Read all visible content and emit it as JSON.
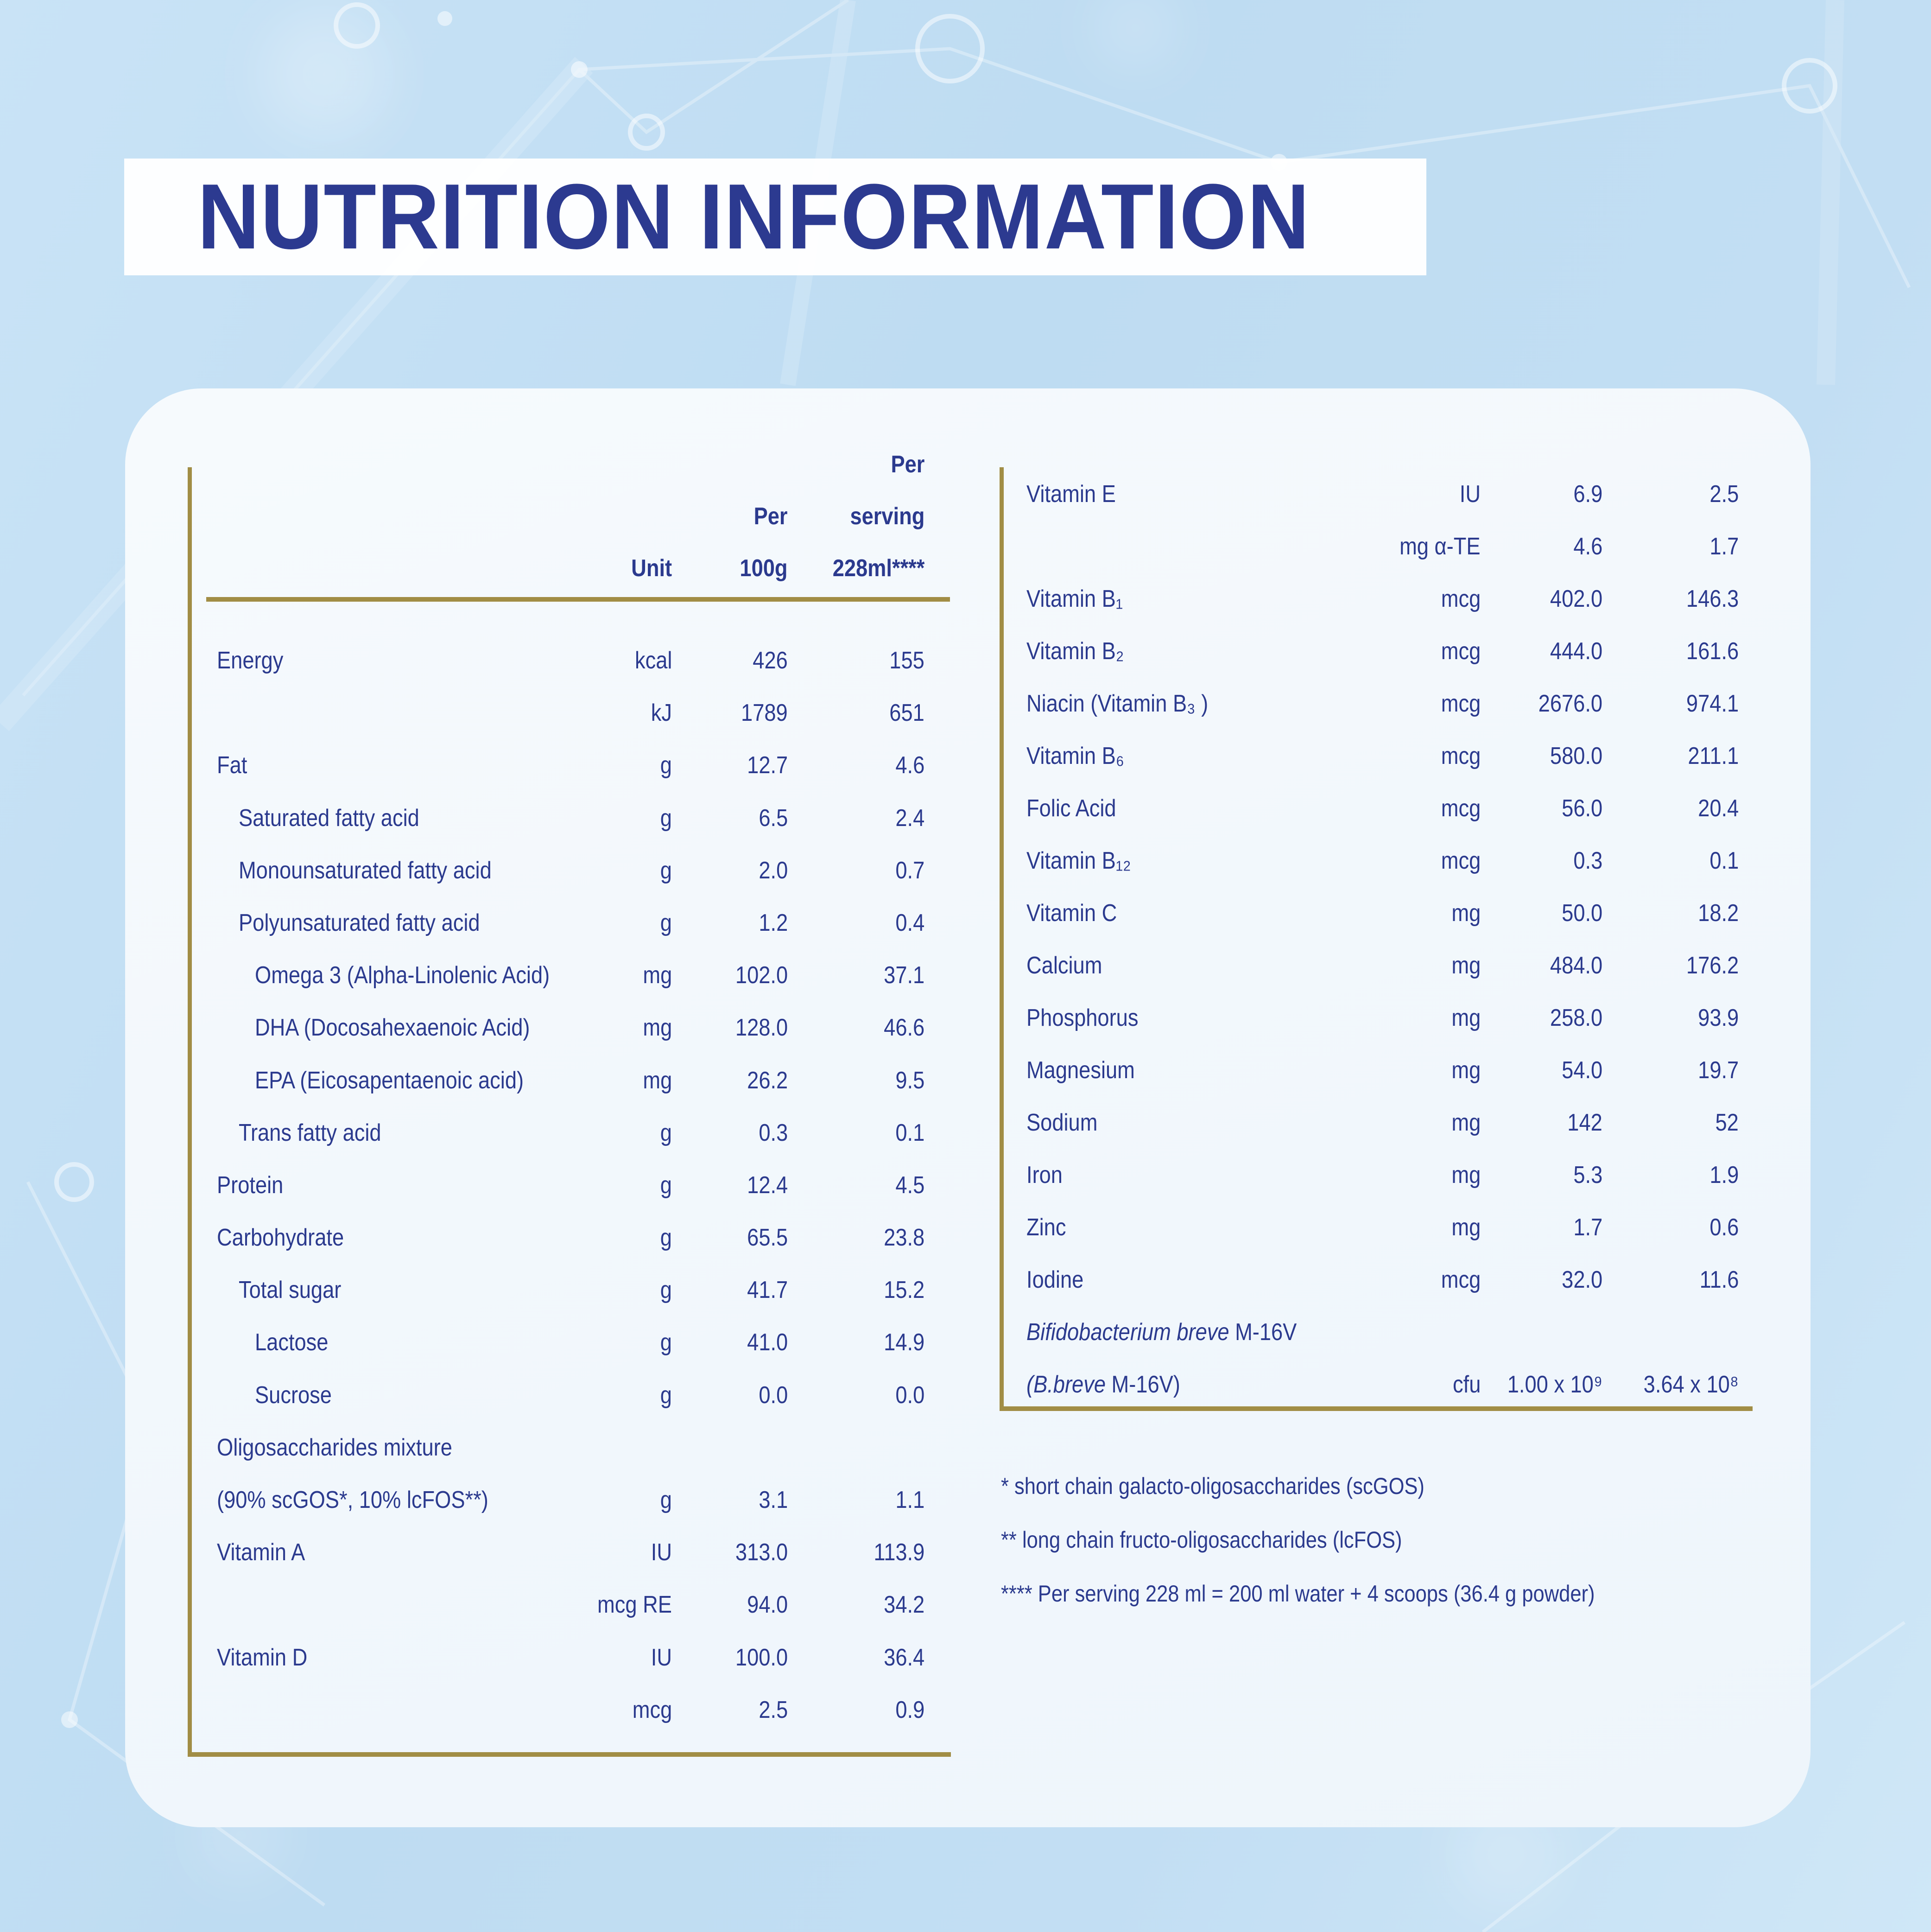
{
  "title": "NUTRITION INFORMATION",
  "colors": {
    "navy": "#2b3a8e",
    "gold": "#a18d45",
    "background_blue": "#bedcf2",
    "card": "#f3f8fd",
    "band": "#ffffff"
  },
  "left_table": {
    "headers": {
      "unit": "Unit",
      "per100g": [
        "Per",
        "100g"
      ],
      "serving": [
        "Per",
        "serving",
        "228ml****"
      ]
    },
    "rows": [
      {
        "label": "Energy",
        "indent": 0,
        "unit": "kcal",
        "per100g": "426",
        "serving": "155"
      },
      {
        "label": "",
        "indent": 0,
        "unit": "kJ",
        "per100g": "1789",
        "serving": "651"
      },
      {
        "label": "Fat",
        "indent": 0,
        "unit": "g",
        "per100g": "12.7",
        "serving": "4.6"
      },
      {
        "label": "Saturated fatty acid",
        "indent": 1,
        "unit": "g",
        "per100g": "6.5",
        "serving": "2.4"
      },
      {
        "label": "Monounsaturated fatty acid",
        "indent": 1,
        "unit": "g",
        "per100g": "2.0",
        "serving": "0.7"
      },
      {
        "label": "Polyunsaturated fatty acid",
        "indent": 1,
        "unit": "g",
        "per100g": "1.2",
        "serving": "0.4"
      },
      {
        "label": "Omega 3 (Alpha-Linolenic Acid)",
        "indent": 2,
        "unit": "mg",
        "per100g": "102.0",
        "serving": "37.1"
      },
      {
        "label": "DHA (Docosahexaenoic Acid)",
        "indent": 2,
        "unit": "mg",
        "per100g": "128.0",
        "serving": "46.6"
      },
      {
        "label": "EPA (Eicosapentaenoic acid)",
        "indent": 2,
        "unit": "mg",
        "per100g": "26.2",
        "serving": "9.5"
      },
      {
        "label": "Trans fatty acid",
        "indent": 1,
        "unit": "g",
        "per100g": "0.3",
        "serving": "0.1"
      },
      {
        "label": "Protein",
        "indent": 0,
        "unit": "g",
        "per100g": "12.4",
        "serving": "4.5"
      },
      {
        "label": "Carbohydrate",
        "indent": 0,
        "unit": "g",
        "per100g": "65.5",
        "serving": "23.8"
      },
      {
        "label": "Total sugar",
        "indent": 1,
        "unit": "g",
        "per100g": "41.7",
        "serving": "15.2"
      },
      {
        "label": "Lactose",
        "indent": 2,
        "unit": "g",
        "per100g": "41.0",
        "serving": "14.9"
      },
      {
        "label": "Sucrose",
        "indent": 2,
        "unit": "g",
        "per100g": "0.0",
        "serving": "0.0"
      },
      {
        "label": "Oligosaccharides mixture",
        "indent": 0
      },
      {
        "label": "(90% scGOS*, 10% lcFOS**)",
        "indent": 0,
        "unit": "g",
        "per100g": "3.1",
        "serving": "1.1"
      },
      {
        "label": "Vitamin A",
        "indent": 0,
        "unit": "IU",
        "per100g": "313.0",
        "serving": "113.9"
      },
      {
        "label": "",
        "indent": 0,
        "unit": "mcg RE",
        "per100g": "94.0",
        "serving": "34.2"
      },
      {
        "label": "Vitamin D",
        "indent": 0,
        "unit": "IU",
        "per100g": "100.0",
        "serving": "36.4"
      },
      {
        "label": "",
        "indent": 0,
        "unit": "mcg",
        "per100g": "2.5",
        "serving": "0.9"
      }
    ]
  },
  "right_table": {
    "rows": [
      {
        "label": "Vitamin E",
        "unit": "IU",
        "per100g": "6.9",
        "serving": "2.5"
      },
      {
        "label": "",
        "unit": "mg α-TE",
        "per100g": "4.6",
        "serving": "1.7"
      },
      {
        "label": "Vitamin B₁",
        "unit": "mcg",
        "per100g": "402.0",
        "serving": "146.3"
      },
      {
        "label": "Vitamin B₂",
        "unit": "mcg",
        "per100g": "444.0",
        "serving": "161.6"
      },
      {
        "label": "Niacin (Vitamin B₃ )",
        "unit": "mcg",
        "per100g": "2676.0",
        "serving": "974.1"
      },
      {
        "label": "Vitamin B₆",
        "unit": "mcg",
        "per100g": "580.0",
        "serving": "211.1"
      },
      {
        "label": "Folic Acid",
        "unit": "mcg",
        "per100g": "56.0",
        "serving": "20.4"
      },
      {
        "label": "Vitamin B₁₂",
        "unit": "mcg",
        "per100g": "0.3",
        "serving": "0.1"
      },
      {
        "label": "Vitamin C",
        "unit": "mg",
        "per100g": "50.0",
        "serving": "18.2"
      },
      {
        "label": "Calcium",
        "unit": "mg",
        "per100g": "484.0",
        "serving": "176.2"
      },
      {
        "label": "Phosphorus",
        "unit": "mg",
        "per100g": "258.0",
        "serving": "93.9"
      },
      {
        "label": "Magnesium",
        "unit": "mg",
        "per100g": "54.0",
        "serving": "19.7"
      },
      {
        "label": "Sodium",
        "unit": "mg",
        "per100g": "142",
        "serving": "52"
      },
      {
        "label": "Iron",
        "unit": "mg",
        "per100g": "5.3",
        "serving": "1.9"
      },
      {
        "label": "Zinc",
        "unit": "mg",
        "per100g": "1.7",
        "serving": "0.6"
      },
      {
        "label": "Iodine",
        "unit": "mcg",
        "per100g": "32.0",
        "serving": "11.6"
      },
      {
        "label_italic": "Bifidobacterium breve",
        "label_rest": " M-16V"
      },
      {
        "label_italic": "(B.breve",
        "label_rest": " M-16V)",
        "unit": "cfu",
        "per100g": "1.00 x 10⁹",
        "serving": "3.64 x 10⁸"
      }
    ]
  },
  "footnotes": [
    "* short chain galacto-oligosaccharides (scGOS)",
    "** long chain fructo-oligosaccharides (lcFOS)",
    "**** Per serving 228 ml = 200 ml water + 4 scoops (36.4 g powder)"
  ]
}
